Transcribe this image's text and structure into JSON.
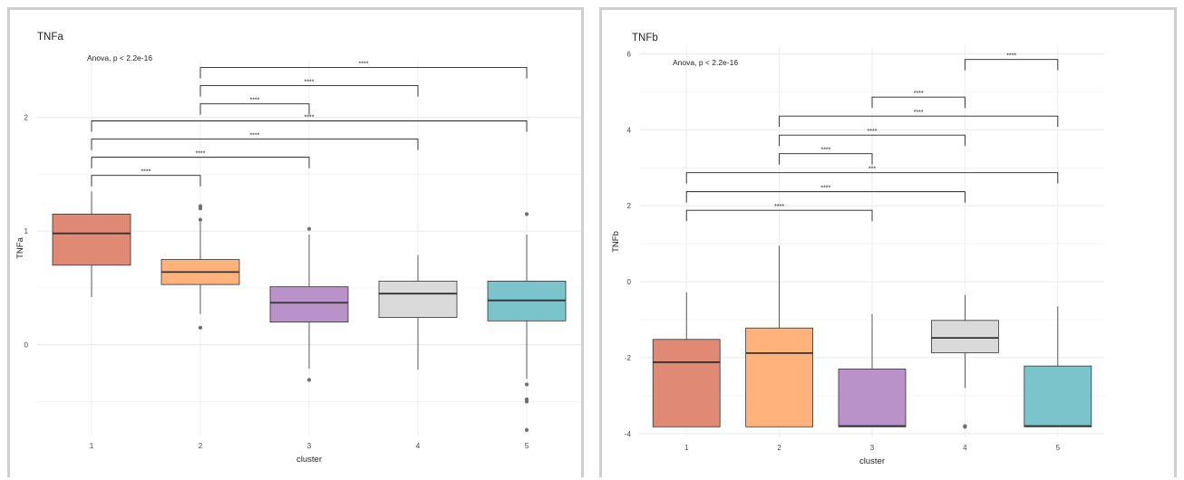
{
  "chart_data": [
    {
      "type": "box",
      "title": "TNFa",
      "xlabel": "cluster",
      "ylabel": "TNFa",
      "annotation": "Anova, p < 2.2e-16",
      "categories": [
        "1",
        "2",
        "3",
        "4",
        "5"
      ],
      "yticks": [
        0,
        1,
        2
      ],
      "ylim": [
        -0.8,
        2.5
      ],
      "grid": true,
      "colors": [
        "#e08a76",
        "#ffb37a",
        "#b992c9",
        "#dadada",
        "#7cc4cb"
      ],
      "boxes": [
        {
          "cluster": "1",
          "q1": 0.7,
          "median": 0.98,
          "q3": 1.15,
          "whisker_low": 0.42,
          "whisker_high": 1.35,
          "outliers": []
        },
        {
          "cluster": "2",
          "q1": 0.53,
          "median": 0.64,
          "q3": 0.75,
          "whisker_low": 0.27,
          "whisker_high": 1.08,
          "outliers": [
            0.15,
            1.1,
            1.2,
            1.22
          ]
        },
        {
          "cluster": "3",
          "q1": 0.2,
          "median": 0.37,
          "q3": 0.51,
          "whisker_low": -0.21,
          "whisker_high": 0.97,
          "outliers": [
            -0.31,
            1.02
          ]
        },
        {
          "cluster": "4",
          "q1": 0.24,
          "median": 0.45,
          "q3": 0.56,
          "whisker_low": -0.22,
          "whisker_high": 0.79,
          "outliers": []
        },
        {
          "cluster": "5",
          "q1": 0.21,
          "median": 0.39,
          "q3": 0.56,
          "whisker_low": -0.3,
          "whisker_high": 0.97,
          "outliers": [
            -0.35,
            -0.48,
            -0.5,
            -0.75,
            1.15
          ]
        }
      ],
      "comparisons": [
        {
          "from": "1",
          "to": "2",
          "y": 1.49,
          "label": "****"
        },
        {
          "from": "1",
          "to": "3",
          "y": 1.65,
          "label": "****"
        },
        {
          "from": "1",
          "to": "4",
          "y": 1.81,
          "label": "****"
        },
        {
          "from": "1",
          "to": "5",
          "y": 1.97,
          "label": "****"
        },
        {
          "from": "2",
          "to": "3",
          "y": 2.12,
          "label": "****"
        },
        {
          "from": "2",
          "to": "4",
          "y": 2.28,
          "label": "****"
        },
        {
          "from": "2",
          "to": "5",
          "y": 2.44,
          "label": "****"
        }
      ]
    },
    {
      "type": "box",
      "title": "TNFb",
      "xlabel": "cluster",
      "ylabel": "TNFb",
      "annotation": "Anova, p < 2.2e-16",
      "categories": [
        "1",
        "2",
        "3",
        "4",
        "5"
      ],
      "yticks": [
        -4,
        -2,
        0,
        2,
        4,
        6
      ],
      "ylim": [
        -4.1,
        6.2
      ],
      "grid": true,
      "colors": [
        "#e08a76",
        "#ffb37a",
        "#b992c9",
        "#dadada",
        "#7cc4cb"
      ],
      "boxes": [
        {
          "cluster": "1",
          "q1": -3.82,
          "median": -2.12,
          "q3": -1.52,
          "whisker_low": -3.82,
          "whisker_high": -0.28,
          "outliers": []
        },
        {
          "cluster": "2",
          "q1": -3.82,
          "median": -1.88,
          "q3": -1.22,
          "whisker_low": -3.82,
          "whisker_high": 0.95,
          "outliers": []
        },
        {
          "cluster": "3",
          "q1": -3.82,
          "median": -3.8,
          "q3": -2.3,
          "whisker_low": -3.82,
          "whisker_high": -0.85,
          "outliers": []
        },
        {
          "cluster": "4",
          "q1": -1.87,
          "median": -1.48,
          "q3": -1.02,
          "whisker_low": -2.8,
          "whisker_high": -0.35,
          "outliers": [
            -3.8,
            -3.82
          ]
        },
        {
          "cluster": "5",
          "q1": -3.82,
          "median": -3.8,
          "q3": -2.22,
          "whisker_low": -3.82,
          "whisker_high": -0.65,
          "outliers": []
        }
      ],
      "comparisons": [
        {
          "from": "1",
          "to": "3",
          "y": 1.88,
          "label": "****"
        },
        {
          "from": "1",
          "to": "4",
          "y": 2.37,
          "label": "****"
        },
        {
          "from": "1",
          "to": "5",
          "y": 2.87,
          "label": "***"
        },
        {
          "from": "2",
          "to": "3",
          "y": 3.37,
          "label": "****"
        },
        {
          "from": "2",
          "to": "4",
          "y": 3.86,
          "label": "****"
        },
        {
          "from": "2",
          "to": "5",
          "y": 4.36,
          "label": "****"
        },
        {
          "from": "3",
          "to": "4",
          "y": 4.86,
          "label": "****"
        },
        {
          "from": "4",
          "to": "5",
          "y": 5.85,
          "label": "****"
        }
      ]
    }
  ]
}
